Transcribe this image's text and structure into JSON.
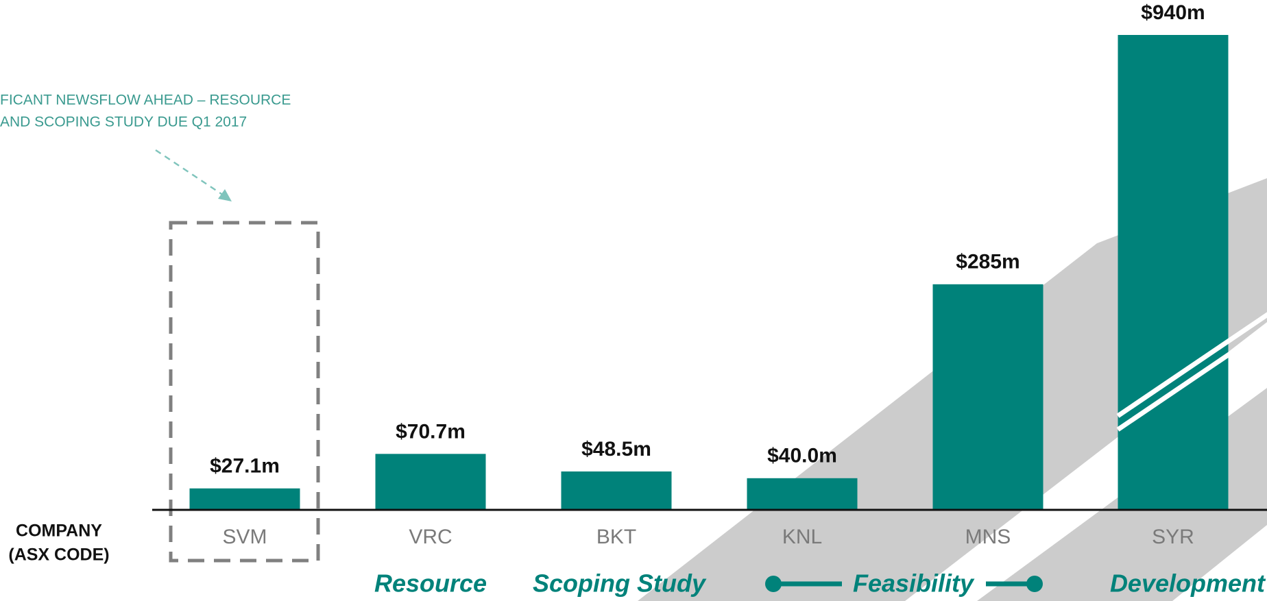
{
  "chart_data": {
    "type": "bar",
    "categories": [
      "SVM",
      "VRC",
      "BKT",
      "KNL",
      "MNS",
      "SYR"
    ],
    "values": [
      27.1,
      70.7,
      48.5,
      40.0,
      285,
      940
    ],
    "value_labels": [
      "$27.1m",
      "$70.7m",
      "$48.5m",
      "$40.0m",
      "$285m",
      "$940m"
    ],
    "color": "#00827a",
    "ylim": [
      0,
      600
    ],
    "annotation": [
      "FICANT NEWSFLOW AHEAD – RESOURCE",
      "AND SCOPING STUDY DUE Q1 2017"
    ],
    "x_label": [
      "COMPANY",
      "(ASX CODE)"
    ],
    "stages": [
      "Resource",
      "Scoping Study",
      "Feasibility",
      "Development"
    ]
  }
}
